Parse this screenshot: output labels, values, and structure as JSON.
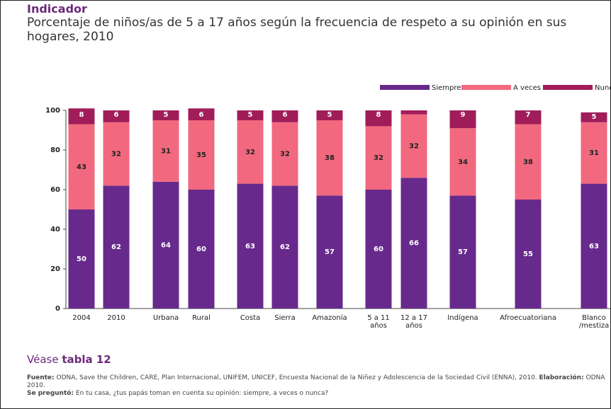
{
  "chart_data": {
    "type": "stacked_bar",
    "title": "Indicador",
    "subtitle": "Porcentaje de niños/as de 5 a 17 años según la frecuencia de respeto a su opinión en sus hogares, 2010",
    "categories": [
      "2004",
      "2010",
      "Urbana",
      "Rural",
      "Costa",
      "Sierra",
      "Amazonía",
      "5 a 11\naños",
      "12 a 17\naños",
      "Indígena",
      "Afroecuatoriana",
      "Blanco\n/mestiza"
    ],
    "series": [
      {
        "name": "Siempre",
        "color": "#672a8c",
        "values": [
          50,
          62,
          64,
          60,
          63,
          62,
          57,
          60,
          66,
          57,
          55,
          63
        ]
      },
      {
        "name": "A veces",
        "color": "#f2697f",
        "values": [
          43,
          32,
          31,
          35,
          32,
          32,
          38,
          32,
          32,
          34,
          38,
          31
        ]
      },
      {
        "name": "Nunca",
        "color": "#a01d5a",
        "values": [
          8,
          6,
          5,
          6,
          5,
          6,
          5,
          8,
          2,
          9,
          7,
          5
        ],
        "value_labels": [
          "8",
          "6",
          "5",
          "6",
          "5",
          "6",
          "5",
          "8",
          null,
          "9",
          "7",
          "5"
        ]
      }
    ],
    "ylim": [
      0,
      100
    ],
    "yticks": [
      0,
      20,
      40,
      60,
      80,
      100
    ],
    "legend": "top-right",
    "see_also": [
      "Véase",
      "tabla 12"
    ],
    "source": [
      "Fuente:",
      "ODNA, Save the Children, CARE, Plan Internacional, UNIFEM, UNICEF, Encuesta Nacional de la Niñez y Adolescencia de la Sociedad Civil (ENNA), 2010.",
      "Elaboración:",
      "ODNA 2010.",
      "Se preguntó:",
      "En tu casa, ¿tus papás toman en cuenta su opinión: siempre, a veces o nunca?"
    ]
  }
}
